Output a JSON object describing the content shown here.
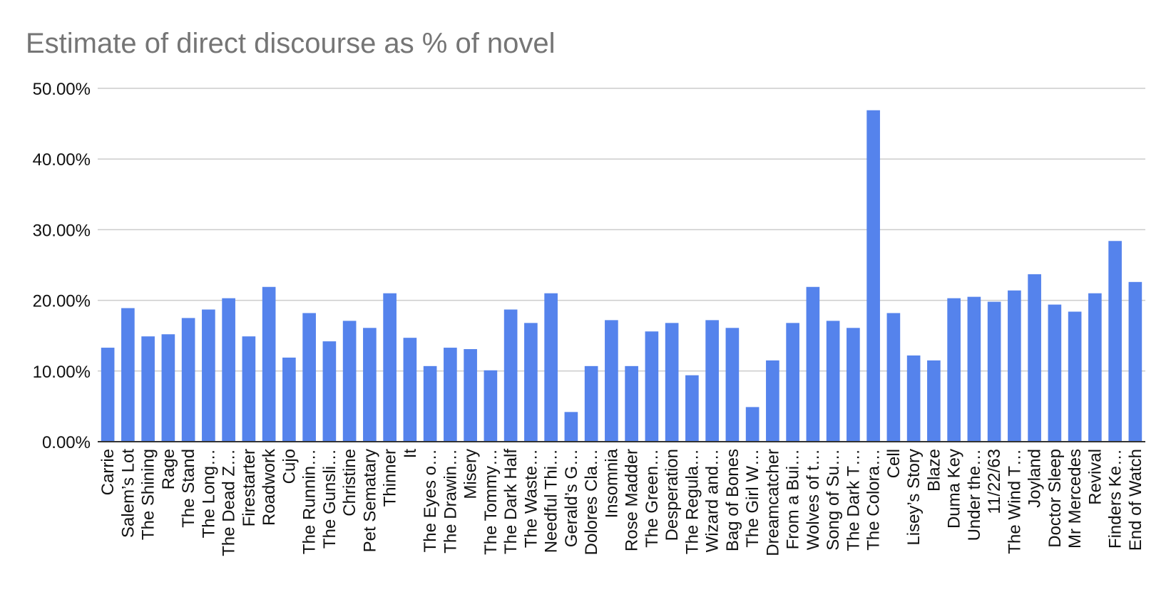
{
  "chart_data": {
    "type": "bar",
    "title": "Estimate of direct discourse as % of novel",
    "xlabel": "",
    "ylabel": "",
    "ylim": [
      0,
      0.5
    ],
    "yticks": [
      0,
      0.1,
      0.2,
      0.3,
      0.4,
      0.5
    ],
    "ytick_labels": [
      "0.00%",
      "10.00%",
      "20.00%",
      "30.00%",
      "40.00%",
      "50.00%"
    ],
    "grid": true,
    "legend": "none",
    "bar_color": "#5583ec",
    "categories": [
      "Carrie",
      "Salem’s Lot",
      "The Shining",
      "Rage",
      "The Stand",
      "The Long…",
      "The Dead Z…",
      "Firestarter",
      "Roadwork",
      "Cujo",
      "The Runnin…",
      "The Gunsli…",
      "Christine",
      "Pet Sematary",
      "Thinner",
      "It",
      "The Eyes o…",
      "The Drawin…",
      "Misery",
      "The Tommy…",
      "The Dark Half",
      "The Waste…",
      "Needful Thi…",
      "Gerald’s G…",
      "Dolores Cla…",
      "Insomnia",
      "Rose Madder",
      "The Green…",
      "Desperation",
      "The Regula…",
      "Wizard and…",
      "Bag of Bones",
      "The Girl W…",
      "Dreamcatcher",
      "From a Bui…",
      "Wolves of t…",
      "Song of Su…",
      "The Dark T…",
      "The Colora…",
      "Cell",
      "Lisey’s Story",
      "Blaze",
      "Duma Key",
      "Under the…",
      "11/22/63",
      "The Wind T…",
      "Joyland",
      "Doctor Sleep",
      "Mr Mercedes",
      "Revival",
      "Finders Ke…",
      "End of Watch"
    ],
    "values": [
      0.133,
      0.189,
      0.149,
      0.152,
      0.175,
      0.187,
      0.203,
      0.149,
      0.219,
      0.119,
      0.182,
      0.142,
      0.171,
      0.161,
      0.21,
      0.147,
      0.107,
      0.133,
      0.131,
      0.101,
      0.187,
      0.168,
      0.21,
      0.042,
      0.107,
      0.172,
      0.107,
      0.156,
      0.168,
      0.094,
      0.172,
      0.161,
      0.049,
      0.115,
      0.168,
      0.219,
      0.171,
      0.161,
      0.469,
      0.182,
      0.122,
      0.115,
      0.203,
      0.205,
      0.198,
      0.214,
      0.237,
      0.194,
      0.184,
      0.21,
      0.284,
      0.226
    ]
  }
}
